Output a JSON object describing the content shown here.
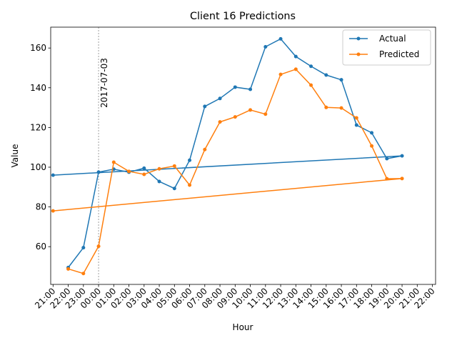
{
  "chart_data": {
    "type": "line",
    "title": "Client 16 Predictions",
    "xlabel": "Hour",
    "ylabel": "Value",
    "x_tick_labels": [
      "21:00",
      "22:00",
      "23:00",
      "00:00",
      "01:00",
      "02:00",
      "03:00",
      "04:00",
      "05:00",
      "06:00",
      "07:00",
      "08:00",
      "09:00",
      "10:00",
      "11:00",
      "12:00",
      "13:00",
      "14:00",
      "15:00",
      "16:00",
      "17:00",
      "18:00",
      "19:00",
      "20:00",
      "21:00",
      "22:00"
    ],
    "x_point_ticks": [
      "22:00",
      "23:00",
      "00:00",
      "01:00",
      "02:00",
      "03:00",
      "04:00",
      "05:00",
      "06:00",
      "07:00",
      "08:00",
      "09:00",
      "10:00",
      "11:00",
      "12:00",
      "13:00",
      "14:00",
      "15:00",
      "16:00",
      "17:00",
      "18:00",
      "19:00",
      "20:00",
      "21:00"
    ],
    "y_ticks": [
      60,
      80,
      100,
      120,
      140,
      160
    ],
    "ylim": [
      41,
      170.5
    ],
    "grid": false,
    "legend_position": "top-right",
    "annotation": {
      "label": "2017-07-03",
      "at": "00:00",
      "style": "dashed-vertical-line"
    },
    "series": [
      {
        "name": "Actual",
        "color": "#1f77b4",
        "values": [
          49.5,
          59.5,
          97.5,
          99.0,
          97.5,
          99.5,
          92.8,
          89.3,
          103.5,
          130.6,
          134.6,
          140.3,
          139.2,
          160.6,
          164.6,
          155.7,
          150.8,
          146.4,
          144.0,
          121.2,
          117.3,
          104.3,
          105.7,
          96.0
        ]
      },
      {
        "name": "Predicted",
        "color": "#ff7f0e",
        "values": [
          48.8,
          46.5,
          60.2,
          102.5,
          97.9,
          96.4,
          99.2,
          100.6,
          91.0,
          108.9,
          122.8,
          125.3,
          128.8,
          126.7,
          146.7,
          149.3,
          141.3,
          130.1,
          129.8,
          124.8,
          110.7,
          94.2,
          94.3,
          78.0
        ]
      }
    ]
  }
}
